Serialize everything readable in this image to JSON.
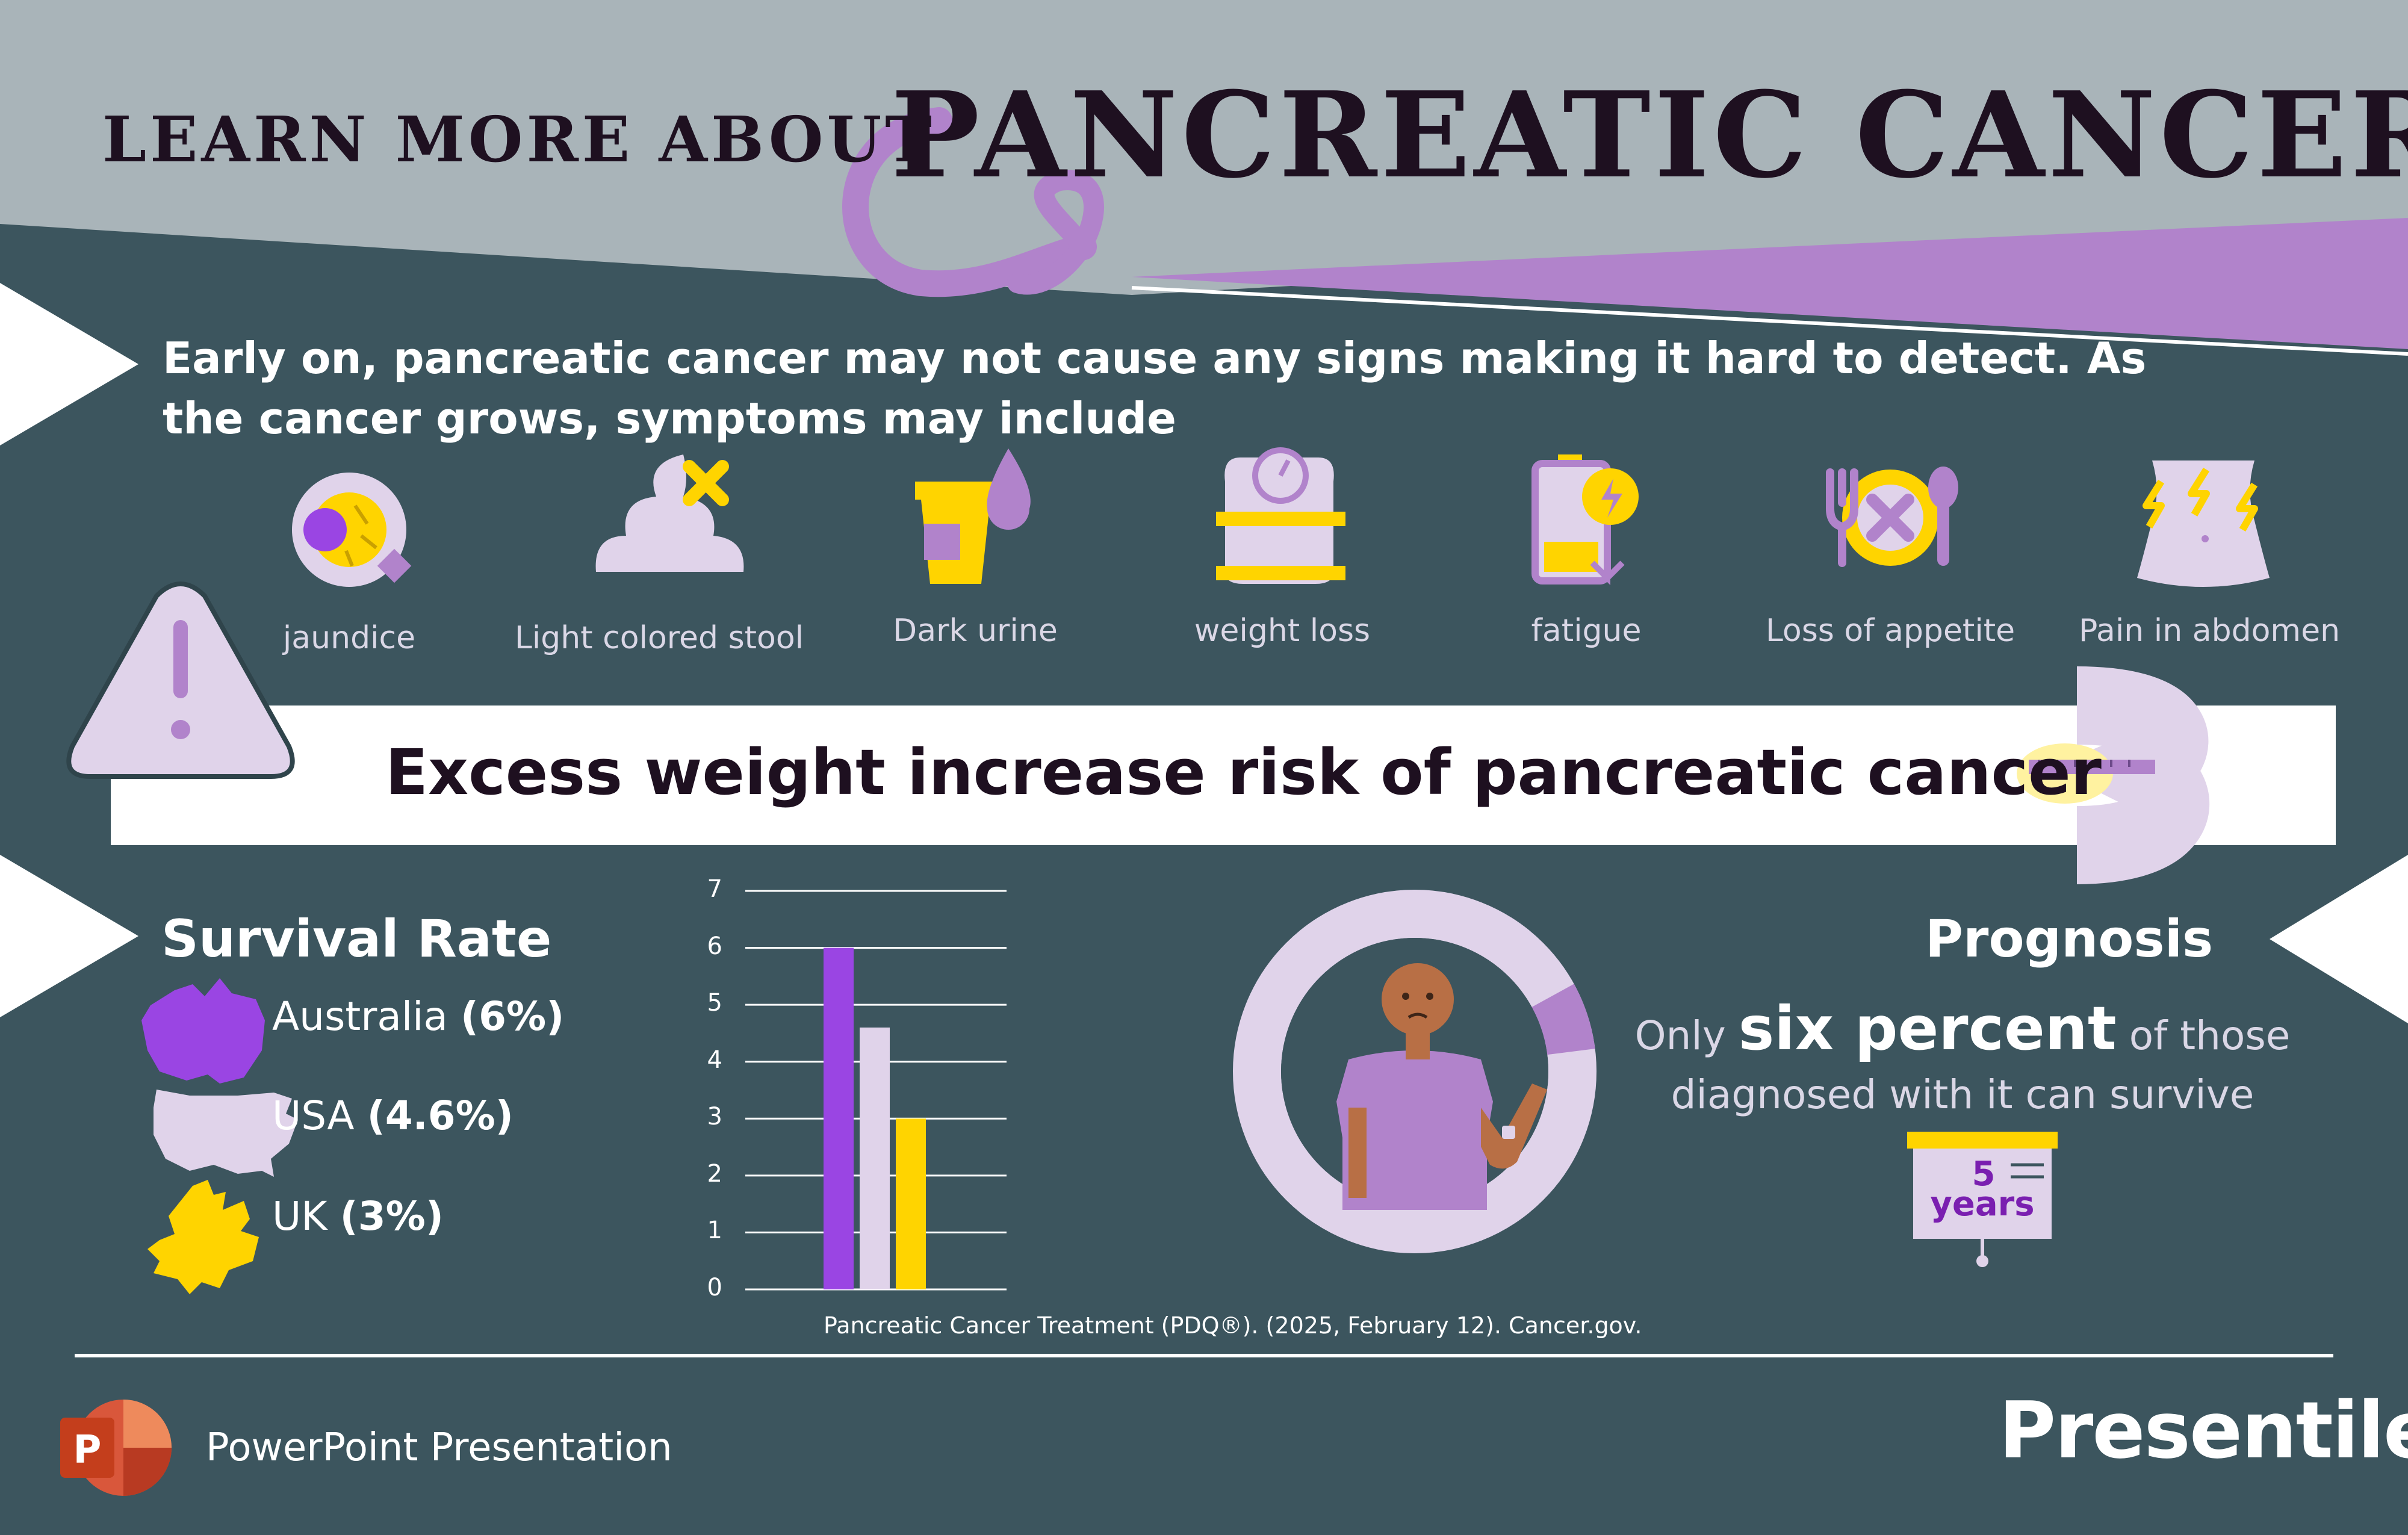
{
  "header": {
    "title_prefix": "LEARN MORE ABOUT",
    "title_main": "PANCREATIC CANCER"
  },
  "intro": "Early on, pancreatic cancer may not cause any signs making it hard to detect. As the cancer grows, symptoms may include",
  "symptoms": [
    {
      "label": "jaundice",
      "icon": "jaundice-eye-icon"
    },
    {
      "label": "Light colored stool",
      "icon": "stool-icon"
    },
    {
      "label": "Dark urine",
      "icon": "urine-cup-icon"
    },
    {
      "label": "weight loss",
      "icon": "weight-scale-icon"
    },
    {
      "label": "fatigue",
      "icon": "low-battery-icon"
    },
    {
      "label": "Loss of appetite",
      "icon": "plate-cutlery-icon"
    },
    {
      "label": "Pain in abdomen",
      "icon": "abdomen-pain-icon"
    }
  ],
  "banner": {
    "text": "Excess weight increase risk of pancreatic cancer",
    "icon": "waist-measure-icon",
    "warning_icon": "warning-triangle-icon"
  },
  "survival": {
    "heading": "Survival Rate",
    "countries": [
      {
        "name": "Australia",
        "value": "(6%)",
        "icon": "australia-map-icon"
      },
      {
        "name": "USA",
        "value": "(4.6%)",
        "icon": "usa-map-icon"
      },
      {
        "name": "UK",
        "value": "(3%)",
        "icon": "uk-map-icon"
      }
    ]
  },
  "chart_data": {
    "type": "bar",
    "categories": [
      "Australia",
      "USA",
      "UK"
    ],
    "values": [
      6,
      4.6,
      3
    ],
    "ylim": [
      0,
      7
    ],
    "yticks": [
      "0",
      "1",
      "2",
      "3",
      "4",
      "5",
      "6",
      "7"
    ],
    "grid": true,
    "colors": [
      "#9a45e3",
      "#e0d3ea",
      "#ffd400"
    ],
    "source": "Pancreatic Cancer Treatment (PDQ®). (2025, February 12). Cancer.gov."
  },
  "prognosis": {
    "heading": "Prognosis",
    "line1_a": "Only",
    "line1_em": "six percent",
    "line1_b": "of those",
    "line2": "diagnosed with it can survive",
    "board_number": "5",
    "board_unit": "years",
    "ring_fraction": 0.06
  },
  "footer": {
    "ppt_label": "PowerPoint Presentation",
    "ppt_icon_letter": "P",
    "brand": "Presentile"
  },
  "colors": {
    "background": "#3c555e",
    "header": "#a9b4b9",
    "purple": "#b183cb",
    "light_purple": "#e0d3ea",
    "yellow": "#ffd400",
    "violet": "#9a45e3"
  }
}
